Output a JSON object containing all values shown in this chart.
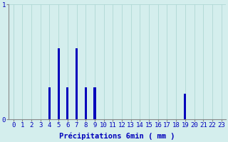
{
  "values": [
    0,
    0,
    0,
    0,
    0.28,
    0.62,
    0.28,
    0.62,
    0.28,
    0.28,
    0,
    0,
    0,
    0,
    0,
    0,
    0,
    0,
    0,
    0.22,
    0,
    0,
    0,
    0
  ],
  "xlabel": "Précipitations 6min ( mm )",
  "ylim": [
    0,
    1.0
  ],
  "yticks": [
    0,
    1
  ],
  "xlim": [
    -0.5,
    23.5
  ],
  "bar_color": "#0000bb",
  "bg_color": "#d4eeed",
  "grid_color": "#afd8d5",
  "axis_color": "#888888",
  "text_color": "#0000bb",
  "xlabel_fontsize": 7.5,
  "tick_fontsize": 6.5,
  "bar_width": 0.25
}
